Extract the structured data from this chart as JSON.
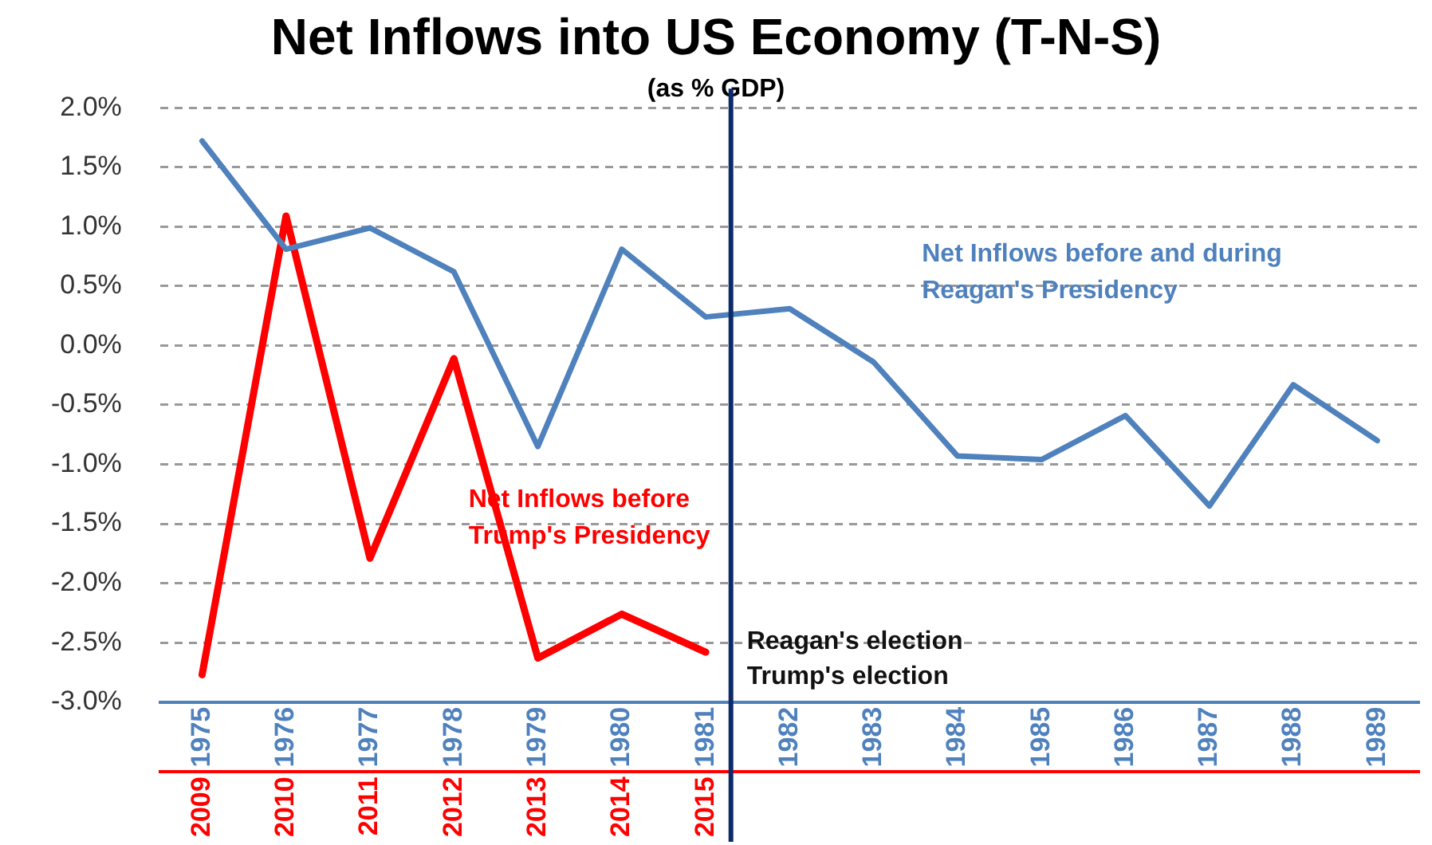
{
  "chart_data": {
    "type": "line",
    "title": "Net Inflows into US Economy (T-N-S)",
    "subtitle": "(as % GDP)",
    "x": [
      1975,
      1976,
      1977,
      1978,
      1979,
      1980,
      1981,
      1982,
      1983,
      1984,
      1985,
      1986,
      1987,
      1988,
      1989
    ],
    "xlim": [
      1974.5,
      1989.5
    ],
    "xticks": [
      1975,
      1976,
      1977,
      1978,
      1979,
      1980,
      1981,
      1982,
      1983,
      1984,
      1985,
      1986,
      1987,
      1988,
      1989
    ],
    "x2lim": [
      2008.5,
      2023.5
    ],
    "x2ticks": [
      2009,
      2010,
      2011,
      2012,
      2013,
      2014,
      2015
    ],
    "ylim": [
      -3.0,
      2.0
    ],
    "yticks": [
      {
        "value": 2.0,
        "label": "2.0%"
      },
      {
        "value": 1.5,
        "label": "1.5%"
      },
      {
        "value": 1.0,
        "label": "1.0%"
      },
      {
        "value": 0.5,
        "label": "0.5%"
      },
      {
        "value": 0.0,
        "label": "0.0%"
      },
      {
        "value": -0.5,
        "label": "-0.5%"
      },
      {
        "value": -1.0,
        "label": "-1.0%"
      },
      {
        "value": -1.5,
        "label": "-1.5%"
      },
      {
        "value": -2.0,
        "label": "-2.0%"
      },
      {
        "value": -2.5,
        "label": "-2.5%"
      },
      {
        "value": -3.0,
        "label": "-3.0%"
      }
    ],
    "series": [
      {
        "name": "Net Inflows before and during Reagan's Presidency",
        "color": "#4f81bd",
        "values": [
          1.72,
          0.81,
          0.99,
          0.62,
          -0.85,
          0.81,
          0.24,
          0.31,
          -0.14,
          -0.93,
          -0.96,
          -0.59,
          -1.35,
          -0.33,
          -0.8
        ]
      },
      {
        "name": "Net Inflows before Trump's Presidency",
        "color": "#ff0000",
        "axis": "x2",
        "x": [
          2009,
          2010,
          2011,
          2012,
          2013,
          2014,
          2015
        ],
        "values": [
          -2.77,
          1.09,
          -1.79,
          -0.11,
          -2.63,
          -2.26,
          -2.58
        ]
      }
    ],
    "ref_lines": [
      {
        "axis": "x",
        "value": 1981.3,
        "label": "Reagan's election\nTrump's election",
        "color": "#0d2a6b"
      }
    ],
    "grid": "y",
    "legend": false,
    "marker": "none",
    "line_style": "solid"
  }
}
